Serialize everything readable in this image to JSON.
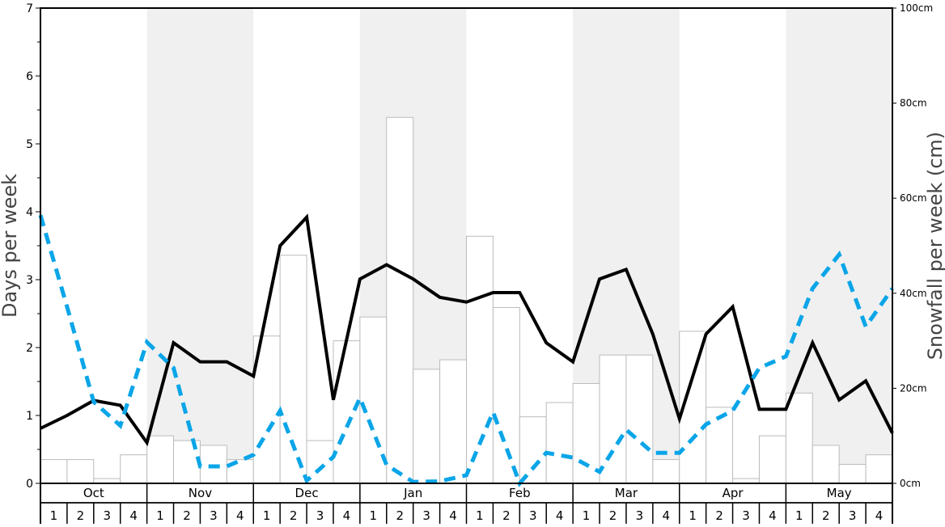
{
  "chart_data": {
    "type": "bar+line",
    "ylabel_left": "Days per week",
    "ylabel_right": "Snowfall per week (cm)",
    "ylim_left": [
      0,
      7
    ],
    "ylim_right": [
      0,
      100
    ],
    "left_ticks": [
      "0",
      "1",
      "2",
      "3",
      "4",
      "5",
      "6",
      "7"
    ],
    "right_ticks": [
      "0cm",
      "20cm",
      "40cm",
      "60cm",
      "80cm",
      "100cm"
    ],
    "months": [
      "Oct",
      "Nov",
      "Dec",
      "Jan",
      "Feb",
      "Mar",
      "Apr",
      "May"
    ],
    "weeks": [
      "1",
      "2",
      "3",
      "4"
    ],
    "shaded_months": [
      "Nov",
      "Jan",
      "Mar",
      "May"
    ],
    "bars": {
      "axis": "right",
      "color": "#ffffff",
      "edge_color": "#bbbbbb",
      "values": [
        5,
        5,
        1,
        6,
        10,
        9,
        8,
        5,
        31,
        48,
        9,
        30,
        35,
        77,
        24,
        26,
        52,
        37,
        14,
        17,
        21,
        27,
        27,
        5,
        32,
        16,
        1,
        10,
        19,
        8,
        4,
        6
      ]
    },
    "series": [
      {
        "style": "solid",
        "color": "#000000",
        "axis": "left",
        "values": [
          0.81,
          1.0,
          1.22,
          1.15,
          0.6,
          2.07,
          1.79,
          1.79,
          1.58,
          3.5,
          3.92,
          1.23,
          3.01,
          3.22,
          3.01,
          2.74,
          2.67,
          2.81,
          2.81,
          2.07,
          1.79,
          3.01,
          3.15,
          2.2,
          0.95,
          2.2,
          2.6,
          1.09,
          1.09,
          2.07,
          1.23,
          1.51,
          0.74
        ]
      },
      {
        "style": "dashed",
        "color": "#0aa5e8",
        "axis": "left",
        "values": [
          3.95,
          2.6,
          1.2,
          0.85,
          2.08,
          1.7,
          0.25,
          0.25,
          0.42,
          1.07,
          0.04,
          0.39,
          1.26,
          0.27,
          0.02,
          0.03,
          0.12,
          1.05,
          0.0,
          0.45,
          0.38,
          0.17,
          0.79,
          0.45,
          0.45,
          0.87,
          1.07,
          1.7,
          1.87,
          2.87,
          3.37,
          2.31,
          2.87
        ]
      }
    ],
    "shade_color": "#f0f0f0",
    "grid": false,
    "legend": "none"
  }
}
